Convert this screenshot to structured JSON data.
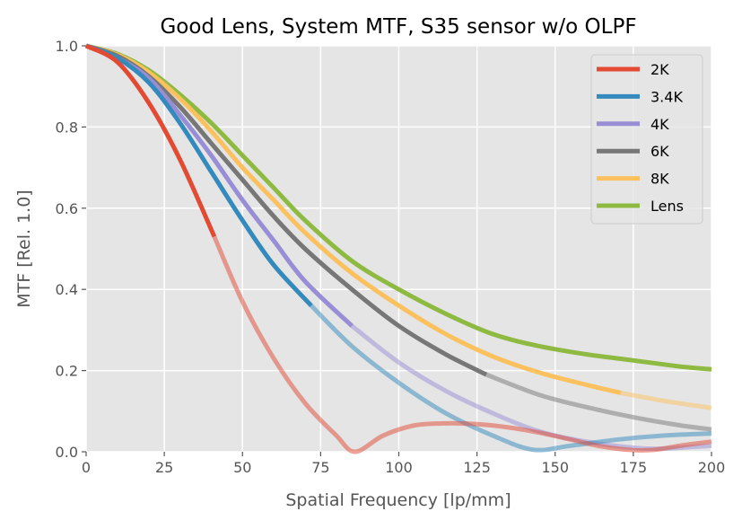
{
  "chart_data": {
    "type": "line",
    "title": "Good Lens, System MTF, S35 sensor w/o OLPF",
    "xlabel": "Spatial Frequency [lp/mm]",
    "ylabel": "MTF [Rel. 1.0]",
    "xlim": [
      0,
      200
    ],
    "ylim": [
      0,
      1.0
    ],
    "xticks": [
      "0",
      "25",
      "50",
      "75",
      "100",
      "125",
      "150",
      "175",
      "200"
    ],
    "yticks": [
      "0.0",
      "0.2",
      "0.4",
      "0.6",
      "0.8",
      "1.0"
    ],
    "grid": true,
    "legend_position": "top-right",
    "note": "Each sensor curve is drawn solid up to its Nyquist frequency and faded beyond it.",
    "series": [
      {
        "name": "2K",
        "color": "#E24A33",
        "nyquist": 41,
        "points": [
          [
            0,
            1.0
          ],
          [
            10,
            0.96
          ],
          [
            20,
            0.86
          ],
          [
            30,
            0.72
          ],
          [
            41,
            0.53
          ],
          [
            50,
            0.37
          ],
          [
            60,
            0.23
          ],
          [
            70,
            0.12
          ],
          [
            80,
            0.04
          ],
          [
            86,
            0.0
          ],
          [
            95,
            0.04
          ],
          [
            105,
            0.065
          ],
          [
            115,
            0.07
          ],
          [
            125,
            0.068
          ],
          [
            135,
            0.06
          ],
          [
            145,
            0.047
          ],
          [
            155,
            0.03
          ],
          [
            165,
            0.013
          ],
          [
            175,
            0.004
          ],
          [
            182,
            0.005
          ],
          [
            190,
            0.015
          ],
          [
            200,
            0.025
          ]
        ]
      },
      {
        "name": "3.4K",
        "color": "#348ABD",
        "nyquist": 72,
        "points": [
          [
            0,
            1.0
          ],
          [
            10,
            0.97
          ],
          [
            20,
            0.91
          ],
          [
            30,
            0.81
          ],
          [
            40,
            0.69
          ],
          [
            50,
            0.57
          ],
          [
            60,
            0.46
          ],
          [
            72,
            0.36
          ],
          [
            85,
            0.26
          ],
          [
            100,
            0.17
          ],
          [
            115,
            0.095
          ],
          [
            130,
            0.04
          ],
          [
            143,
            0.005
          ],
          [
            155,
            0.015
          ],
          [
            170,
            0.03
          ],
          [
            185,
            0.04
          ],
          [
            200,
            0.045
          ]
        ]
      },
      {
        "name": "4K",
        "color": "#988ED5",
        "nyquist": 85,
        "points": [
          [
            0,
            1.0
          ],
          [
            10,
            0.97
          ],
          [
            20,
            0.92
          ],
          [
            30,
            0.83
          ],
          [
            40,
            0.73
          ],
          [
            50,
            0.62
          ],
          [
            60,
            0.52
          ],
          [
            70,
            0.42
          ],
          [
            85,
            0.31
          ],
          [
            100,
            0.22
          ],
          [
            115,
            0.15
          ],
          [
            130,
            0.095
          ],
          [
            145,
            0.05
          ],
          [
            160,
            0.025
          ],
          [
            175,
            0.01
          ],
          [
            185,
            0.008
          ],
          [
            200,
            0.015
          ]
        ]
      },
      {
        "name": "6K",
        "color": "#777777",
        "nyquist": 128,
        "points": [
          [
            0,
            1.0
          ],
          [
            10,
            0.975
          ],
          [
            20,
            0.925
          ],
          [
            30,
            0.85
          ],
          [
            40,
            0.76
          ],
          [
            50,
            0.67
          ],
          [
            60,
            0.58
          ],
          [
            70,
            0.5
          ],
          [
            85,
            0.4
          ],
          [
            100,
            0.31
          ],
          [
            115,
            0.24
          ],
          [
            128,
            0.19
          ],
          [
            145,
            0.14
          ],
          [
            160,
            0.11
          ],
          [
            175,
            0.085
          ],
          [
            190,
            0.065
          ],
          [
            200,
            0.055
          ]
        ]
      },
      {
        "name": "8K",
        "color": "#FBC15E",
        "nyquist": 171,
        "points": [
          [
            0,
            1.0
          ],
          [
            10,
            0.978
          ],
          [
            20,
            0.935
          ],
          [
            30,
            0.87
          ],
          [
            40,
            0.79
          ],
          [
            50,
            0.7
          ],
          [
            60,
            0.62
          ],
          [
            70,
            0.54
          ],
          [
            85,
            0.44
          ],
          [
            100,
            0.36
          ],
          [
            115,
            0.29
          ],
          [
            130,
            0.235
          ],
          [
            145,
            0.195
          ],
          [
            160,
            0.165
          ],
          [
            171,
            0.145
          ],
          [
            185,
            0.125
          ],
          [
            200,
            0.108
          ]
        ]
      },
      {
        "name": "Lens",
        "color": "#8EBA42",
        "nyquist": null,
        "points": [
          [
            0,
            1.0
          ],
          [
            10,
            0.98
          ],
          [
            20,
            0.94
          ],
          [
            30,
            0.88
          ],
          [
            40,
            0.81
          ],
          [
            50,
            0.73
          ],
          [
            60,
            0.65
          ],
          [
            70,
            0.57
          ],
          [
            85,
            0.47
          ],
          [
            100,
            0.4
          ],
          [
            115,
            0.34
          ],
          [
            130,
            0.29
          ],
          [
            145,
            0.26
          ],
          [
            160,
            0.24
          ],
          [
            175,
            0.225
          ],
          [
            190,
            0.21
          ],
          [
            200,
            0.203
          ]
        ]
      }
    ]
  }
}
